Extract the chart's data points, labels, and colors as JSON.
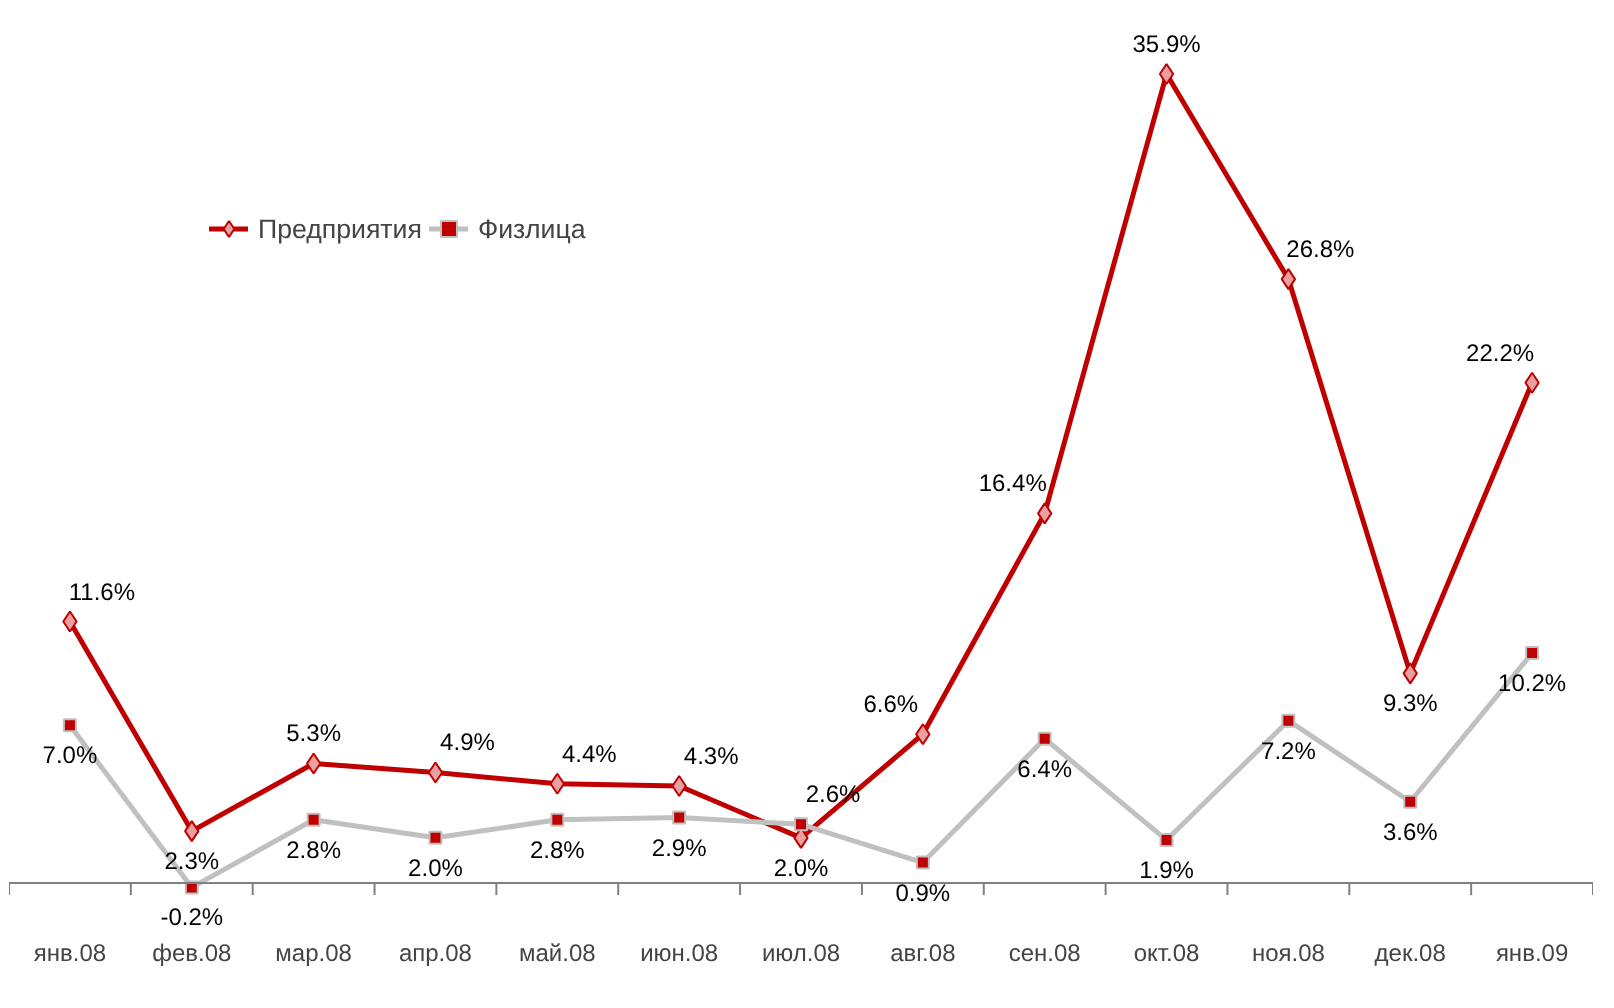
{
  "chart_data": {
    "type": "line",
    "categories": [
      "янв.08",
      "фев.08",
      "мар.08",
      "апр.08",
      "май.08",
      "июн.08",
      "июл.08",
      "авг.08",
      "сен.08",
      "окт.08",
      "ноя.08",
      "дек.08",
      "янв.09"
    ],
    "series": [
      {
        "name": "Предприятия",
        "color": "#c00000",
        "marker": "diamond",
        "values": [
          11.6,
          2.3,
          5.3,
          4.9,
          4.4,
          4.3,
          2.0,
          6.6,
          16.4,
          35.9,
          26.8,
          9.3,
          22.2
        ],
        "value_labels": [
          "11.6%",
          "2.3%",
          "5.3%",
          "4.9%",
          "4.4%",
          "4.3%",
          "2.0%",
          "6.6%",
          "16.4%",
          "35.9%",
          "26.8%",
          "9.3%",
          "22.2%"
        ]
      },
      {
        "name": "Физлица",
        "color": "#c0c0c0",
        "marker": "square",
        "values": [
          7.0,
          -0.2,
          2.8,
          2.0,
          2.8,
          2.9,
          2.6,
          0.9,
          6.4,
          1.9,
          7.2,
          3.6,
          10.2
        ],
        "value_labels": [
          "7.0%",
          "-0.2%",
          "2.8%",
          "2.0%",
          "2.8%",
          "2.9%",
          "2.6%",
          "0.9%",
          "6.4%",
          "1.9%",
          "7.2%",
          "3.6%",
          "10.2%"
        ]
      }
    ],
    "legend": "top left",
    "grid": false
  }
}
